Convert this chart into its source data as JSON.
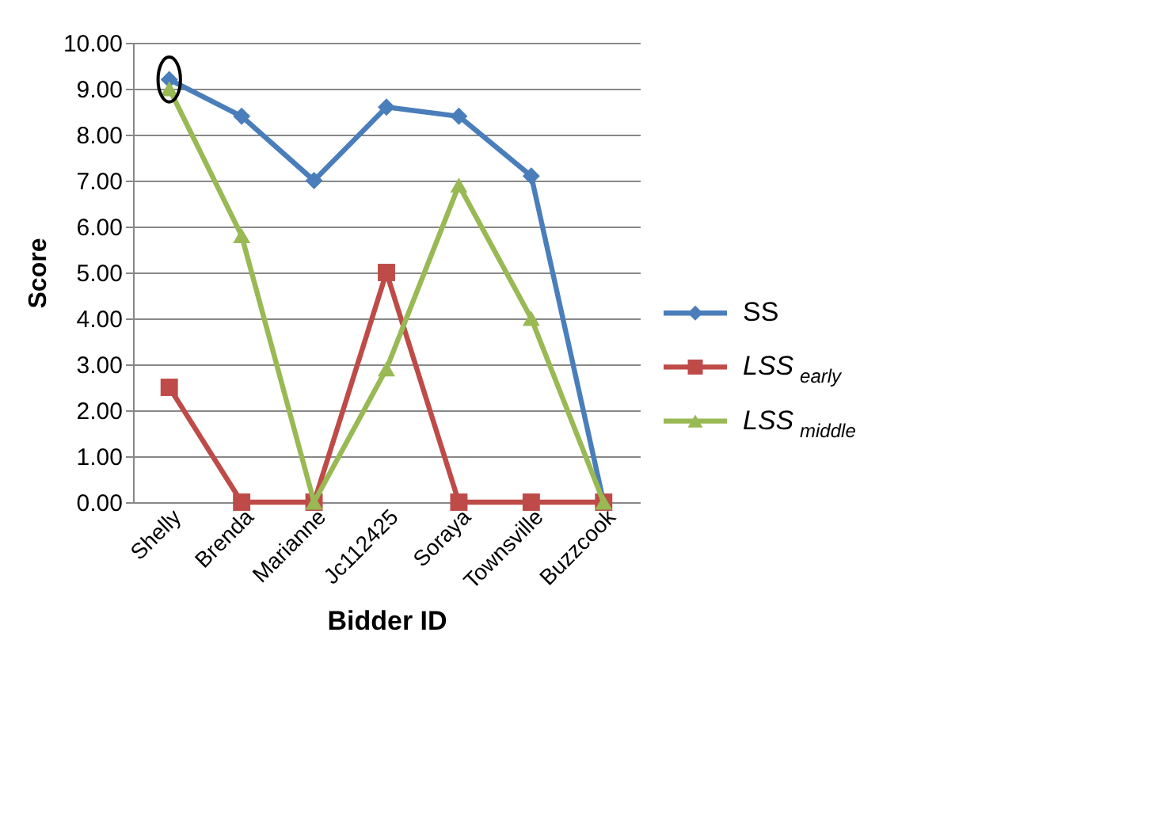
{
  "chart_data": {
    "type": "line",
    "xlabel": "Bidder ID",
    "ylabel": "Score",
    "categories": [
      "Shelly",
      "Brenda",
      "Marianne",
      "Jc112425",
      "Soraya",
      "Townsville",
      "Buzzcook"
    ],
    "series": [
      {
        "name": "SS",
        "color": "#4a7ebb",
        "marker": "diamond",
        "values": [
          9.2,
          8.4,
          7.0,
          8.6,
          8.4,
          7.1,
          0.0
        ]
      },
      {
        "name": "LSS$_{early}$",
        "color": "#be4b48",
        "marker": "square",
        "values": [
          2.5,
          0.0,
          0.0,
          5.0,
          0.0,
          0.0,
          0.0
        ]
      },
      {
        "name": "LSS$_{middle}$",
        "color": "#98b954",
        "marker": "triangle",
        "values": [
          9.0,
          5.8,
          0.0,
          2.9,
          6.9,
          4.0,
          0.0
        ]
      }
    ],
    "ylim": [
      0,
      10
    ],
    "yticks": [
      {
        "value": 0,
        "label": "0.00"
      },
      {
        "value": 1,
        "label": "1.00"
      },
      {
        "value": 2,
        "label": "2.00"
      },
      {
        "value": 3,
        "label": "3.00"
      },
      {
        "value": 4,
        "label": "4.00"
      },
      {
        "value": 5,
        "label": "5.00"
      },
      {
        "value": 6,
        "label": "6.00"
      },
      {
        "value": 7,
        "label": "7.00"
      },
      {
        "value": 8,
        "label": "8.00"
      },
      {
        "value": 9,
        "label": "9.00"
      },
      {
        "value": 10,
        "label": "10.00"
      }
    ],
    "grid": "y",
    "legend": "right",
    "line_style": "solid"
  }
}
